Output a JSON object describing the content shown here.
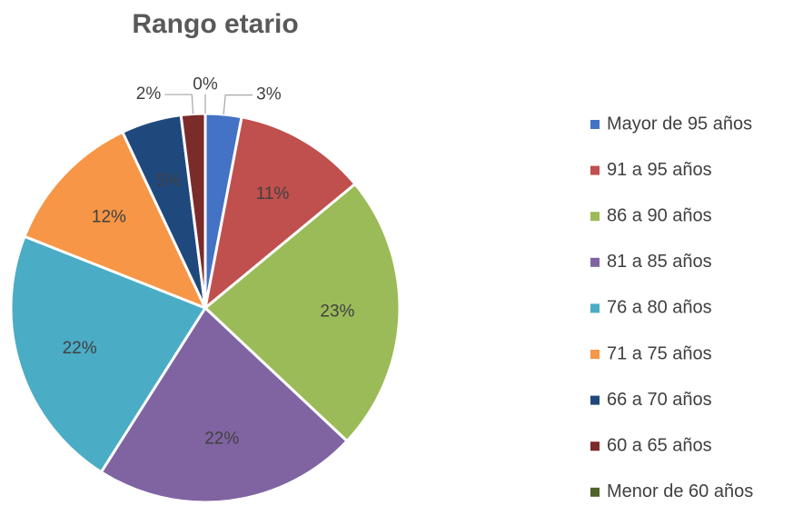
{
  "chart_data": {
    "type": "pie",
    "title": "Rango etario",
    "categories": [
      "Mayor de 95 años",
      "91 a 95 años",
      "86 a 90 años",
      "81 a 85 años",
      "76 a 80 años",
      "71 a 75 años",
      "66 a 70 años",
      "60 a 65 años",
      "Menor de 60 años"
    ],
    "values": [
      3,
      11,
      23,
      22,
      22,
      12,
      5,
      2,
      0
    ],
    "value_labels": [
      "3%",
      "11%",
      "23%",
      "22%",
      "22%",
      "12%",
      "5%",
      "2%",
      "0%"
    ],
    "colors": [
      "#4472c4",
      "#c0504d",
      "#9bbb59",
      "#8064a2",
      "#4bacc6",
      "#f79646",
      "#1f497d",
      "#7b2b2a",
      "#4f6228"
    ],
    "legend": "right"
  }
}
